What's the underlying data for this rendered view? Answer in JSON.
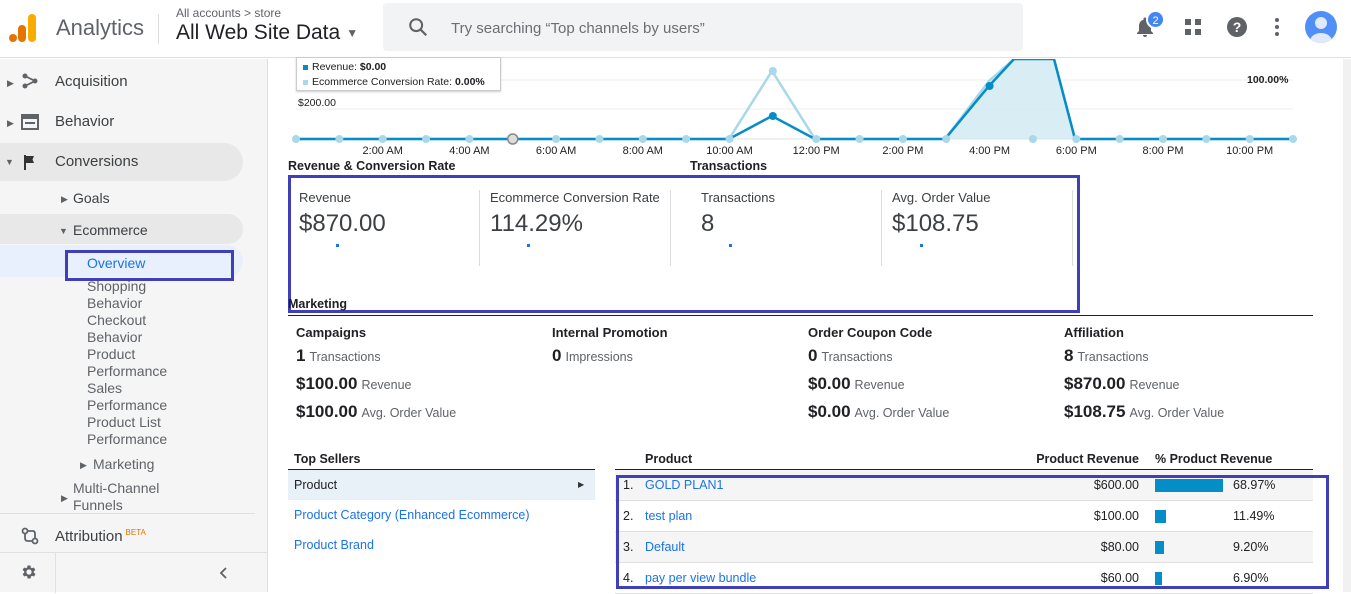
{
  "header": {
    "app_title": "Analytics",
    "breadcrumb": "All accounts > store",
    "property": "All Web Site Data",
    "search_placeholder": "Try searching “Top channels by users”",
    "notification_count": "2",
    "icons": [
      "search-icon",
      "notification-bell-icon",
      "apps-grid-icon",
      "help-icon",
      "more-vert-icon",
      "avatar"
    ]
  },
  "sidebar": {
    "items": [
      {
        "label": "Acquisition",
        "icon": "acquisition-icon"
      },
      {
        "label": "Behavior",
        "icon": "behavior-icon"
      },
      {
        "label": "Conversions",
        "icon": "flag-icon"
      }
    ],
    "conversions_children": {
      "goals": "Goals",
      "ecommerce": "Ecommerce",
      "ecommerce_children": [
        "Overview",
        "Shopping",
        "Behavior",
        "Checkout",
        "Behavior",
        "Product",
        "Performance",
        "Sales",
        "Performance",
        "Product List",
        "Performance"
      ],
      "marketing": "Marketing",
      "multichannel_1": "Multi-Channel",
      "multichannel_2": "Funnels"
    },
    "attribution": "Attribution",
    "attribution_badge": "BETA"
  },
  "chart": {
    "tooltip_revenue_label": "Revenue:",
    "tooltip_revenue_value": "$0.00",
    "tooltip_conv_label": "Ecommerce Conversion Rate:",
    "tooltip_conv_value": "0.00%",
    "y_left_label": "$200.00",
    "y_right_label": "100.00%",
    "x_ticks": [
      "2:00 AM",
      "4:00 AM",
      "6:00 AM",
      "8:00 AM",
      "10:00 AM",
      "12:00 PM",
      "2:00 PM",
      "4:00 PM",
      "6:00 PM",
      "8:00 PM",
      "10:00 PM"
    ],
    "revenue_color": "#058dc7",
    "conversion_color": "#a8d8ea"
  },
  "sections": {
    "revenue_conversion": "Revenue & Conversion Rate",
    "transactions": "Transactions",
    "marketing": "Marketing"
  },
  "metrics": [
    {
      "label": "Revenue",
      "value": "$870.00"
    },
    {
      "label": "Ecommerce Conversion Rate",
      "value": "114.29%"
    },
    {
      "label": "Transactions",
      "value": "8"
    },
    {
      "label": "Avg. Order Value",
      "value": "$108.75"
    }
  ],
  "marketing": {
    "campaigns": {
      "title": "Campaigns",
      "transactions": "1",
      "transactions_label": "Transactions",
      "revenue": "$100.00",
      "revenue_label": "Revenue",
      "aov": "$100.00",
      "aov_label": "Avg. Order Value"
    },
    "internal": {
      "title": "Internal Promotion",
      "impressions": "0",
      "impressions_label": "Impressions"
    },
    "coupon": {
      "title": "Order Coupon Code",
      "transactions": "0",
      "transactions_label": "Transactions",
      "revenue": "$0.00",
      "revenue_label": "Revenue",
      "aov": "$0.00",
      "aov_label": "Avg. Order Value"
    },
    "affiliation": {
      "title": "Affiliation",
      "transactions": "8",
      "transactions_label": "Transactions",
      "revenue": "$870.00",
      "revenue_label": "Revenue",
      "aov": "$108.75",
      "aov_label": "Avg. Order Value"
    }
  },
  "top_sellers": {
    "title": "Top Sellers",
    "items": [
      "Product",
      "Product Category (Enhanced Ecommerce)",
      "Product Brand"
    ]
  },
  "product_table": {
    "col_product": "Product",
    "col_revenue": "Product Revenue",
    "col_pct": "% Product Revenue",
    "rows": [
      {
        "num": "1.",
        "name": "GOLD PLAN1",
        "revenue": "$600.00",
        "pct": "68.97%",
        "share": 68.97
      },
      {
        "num": "2.",
        "name": "test plan",
        "revenue": "$100.00",
        "pct": "11.49%",
        "share": 11.49
      },
      {
        "num": "3.",
        "name": "Default",
        "revenue": "$80.00",
        "pct": "9.20%",
        "share": 9.2
      },
      {
        "num": "4.",
        "name": "pay per view bundle",
        "revenue": "$60.00",
        "pct": "6.90%",
        "share": 6.9
      }
    ]
  }
}
